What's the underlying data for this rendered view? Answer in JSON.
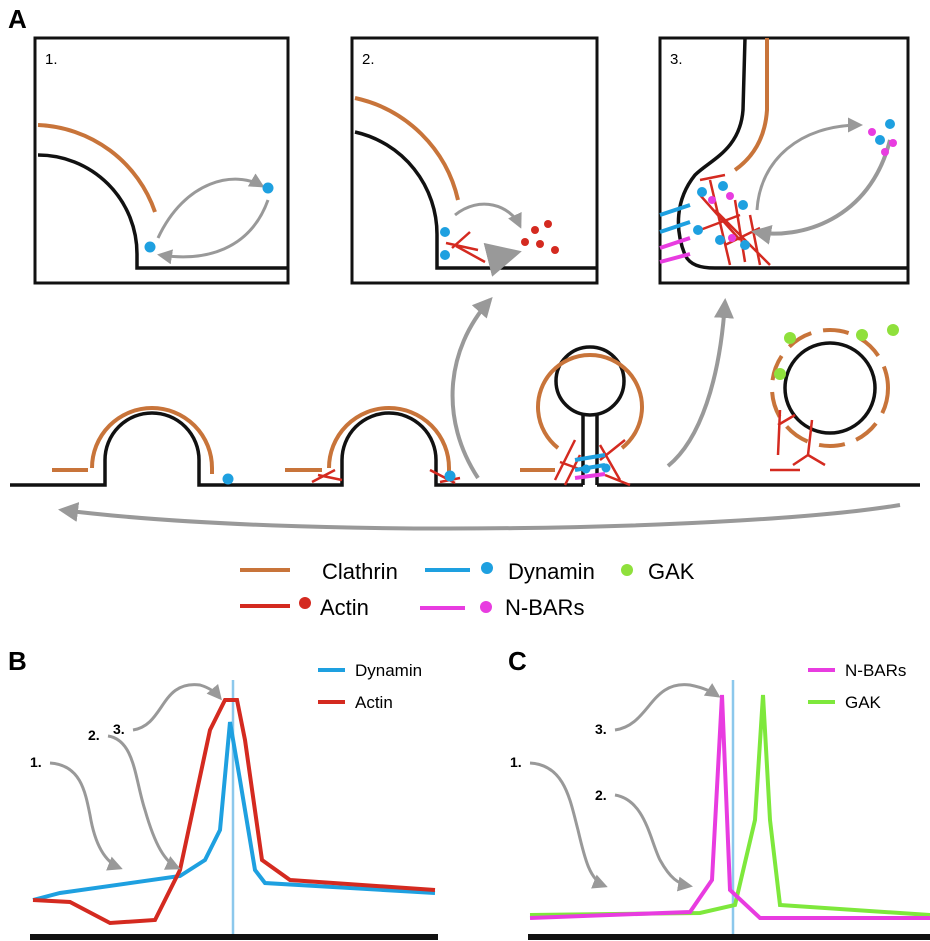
{
  "panel_a": {
    "label": "A",
    "insets": [
      "1.",
      "2.",
      "3."
    ],
    "legend": {
      "clathrin": "Clathrin",
      "dynamin": "Dynamin",
      "gak": "GAK",
      "actin": "Actin",
      "nbars": "N-BARs"
    }
  },
  "panel_b": {
    "label": "B",
    "legend": [
      "Dynamin",
      "Actin"
    ],
    "stages": [
      "1.",
      "2.",
      "3."
    ]
  },
  "panel_c": {
    "label": "C",
    "legend": [
      "N-BARs",
      "GAK"
    ],
    "stages": [
      "1.",
      "2.",
      "3."
    ]
  }
}
